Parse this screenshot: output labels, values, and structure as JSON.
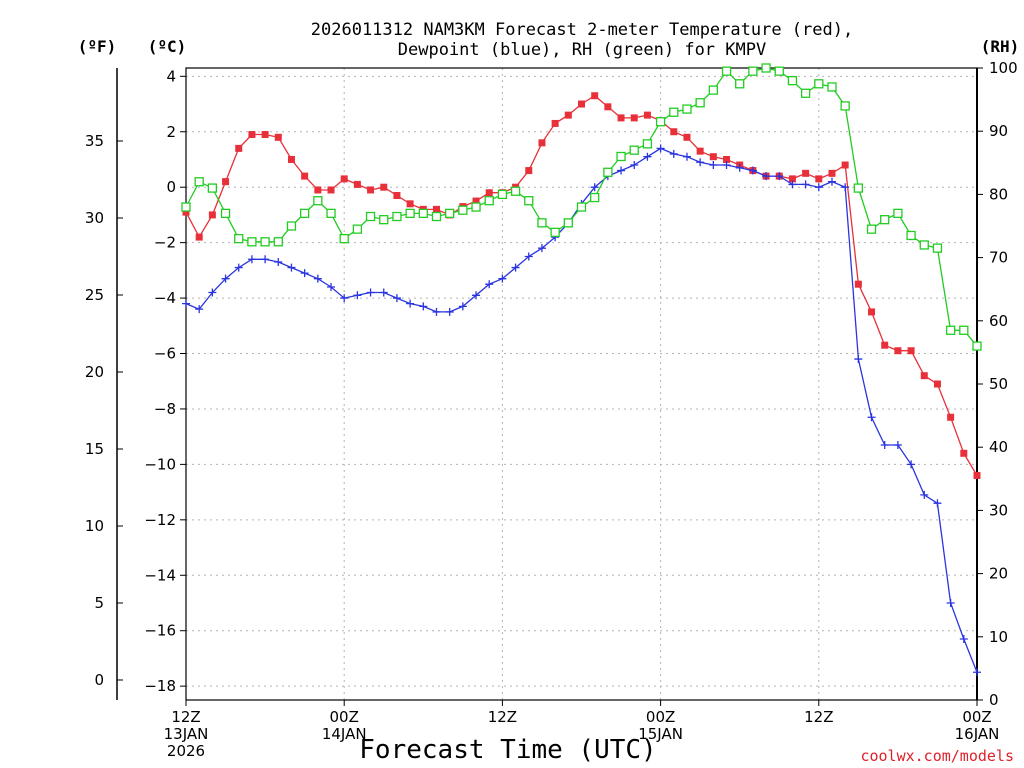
{
  "chart_data": {
    "type": "line",
    "title_lines": [
      "2026011312 NAM3KM Forecast 2-meter Temperature (red),",
      "Dewpoint (blue), RH (green) for KMPV"
    ],
    "xlabel": "Forecast Time (UTC)",
    "credit": "coolwx.com/models",
    "units": {
      "f": "(ºF)",
      "c": "(ºC)",
      "rh": "(RH)"
    },
    "x_range_hours": [
      0,
      60
    ],
    "c_axis": {
      "min": -18.5,
      "max": 4.3,
      "ticks": [
        4,
        2,
        0,
        -2,
        -4,
        -6,
        -8,
        -10,
        -12,
        -14,
        -16,
        -18
      ]
    },
    "f_axis": {
      "ticks": [
        35,
        30,
        25,
        20,
        15,
        10,
        5,
        0
      ]
    },
    "rh_axis": {
      "min": 0,
      "max": 100,
      "ticks": [
        100,
        90,
        80,
        70,
        60,
        50,
        40,
        30,
        20,
        10,
        0
      ]
    },
    "x_ticks": [
      {
        "hour": 0,
        "lines": [
          "12Z",
          "13JAN",
          "2026"
        ]
      },
      {
        "hour": 12,
        "lines": [
          "00Z",
          "14JAN"
        ]
      },
      {
        "hour": 24,
        "lines": [
          "12Z"
        ]
      },
      {
        "hour": 36,
        "lines": [
          "00Z",
          "15JAN"
        ]
      },
      {
        "hour": 48,
        "lines": [
          "12Z"
        ]
      },
      {
        "hour": 60,
        "lines": [
          "00Z",
          "16JAN"
        ]
      }
    ],
    "series": [
      {
        "name": "Temperature",
        "unit": "C",
        "color": "#e8303a",
        "marker": "filled-square",
        "hours": [
          0,
          1,
          2,
          3,
          4,
          5,
          6,
          7,
          8,
          9,
          10,
          11,
          12,
          13,
          14,
          15,
          16,
          17,
          18,
          19,
          20,
          21,
          22,
          23,
          24,
          25,
          26,
          27,
          28,
          29,
          30,
          31,
          32,
          33,
          34,
          35,
          36,
          37,
          38,
          39,
          40,
          41,
          42,
          43,
          44,
          45,
          46,
          47,
          48,
          49,
          50,
          51,
          52,
          53,
          54,
          55,
          56,
          57,
          58,
          59,
          60
        ],
        "values": [
          -0.9,
          -1.8,
          -1.0,
          0.2,
          1.4,
          1.9,
          1.9,
          1.8,
          1.0,
          0.4,
          -0.1,
          -0.1,
          0.3,
          0.1,
          -0.1,
          0.0,
          -0.3,
          -0.6,
          -0.8,
          -0.8,
          -1.0,
          -0.7,
          -0.5,
          -0.2,
          -0.2,
          0.0,
          0.6,
          1.6,
          2.3,
          2.6,
          3.0,
          3.3,
          2.9,
          2.5,
          2.5,
          2.6,
          2.4,
          2.0,
          1.8,
          1.3,
          1.1,
          1.0,
          0.8,
          0.6,
          0.4,
          0.4,
          0.3,
          0.5,
          0.3,
          0.5,
          0.8,
          -3.5,
          -4.5,
          -5.7,
          -5.9,
          -5.9,
          -6.8,
          -7.1,
          -8.3,
          -9.6,
          -10.4
        ]
      },
      {
        "name": "Dewpoint",
        "unit": "C",
        "color": "#2a35e0",
        "marker": "plus",
        "hours": [
          0,
          1,
          2,
          3,
          4,
          5,
          6,
          7,
          8,
          9,
          10,
          11,
          12,
          13,
          14,
          15,
          16,
          17,
          18,
          19,
          20,
          21,
          22,
          23,
          24,
          25,
          26,
          27,
          28,
          29,
          30,
          31,
          32,
          33,
          34,
          35,
          36,
          37,
          38,
          39,
          40,
          41,
          42,
          43,
          44,
          45,
          46,
          47,
          48,
          49,
          50,
          51,
          52,
          53,
          54,
          55,
          56,
          57,
          58,
          59,
          60
        ],
        "values": [
          -4.2,
          -4.4,
          -3.8,
          -3.3,
          -2.9,
          -2.6,
          -2.6,
          -2.7,
          -2.9,
          -3.1,
          -3.3,
          -3.6,
          -4.0,
          -3.9,
          -3.8,
          -3.8,
          -4.0,
          -4.2,
          -4.3,
          -4.5,
          -4.5,
          -4.3,
          -3.9,
          -3.5,
          -3.3,
          -2.9,
          -2.5,
          -2.2,
          -1.8,
          -1.3,
          -0.6,
          0.0,
          0.4,
          0.6,
          0.8,
          1.1,
          1.4,
          1.2,
          1.1,
          0.9,
          0.8,
          0.8,
          0.7,
          0.6,
          0.4,
          0.4,
          0.1,
          0.1,
          0.0,
          0.2,
          0.0,
          -6.2,
          -8.3,
          -9.3,
          -9.3,
          -10.0,
          -11.1,
          -11.4,
          -15.0,
          -16.3,
          -17.5
        ]
      },
      {
        "name": "RH",
        "unit": "%",
        "color": "#22cc22",
        "marker": "open-square",
        "hours": [
          0,
          1,
          2,
          3,
          4,
          5,
          6,
          7,
          8,
          9,
          10,
          11,
          12,
          13,
          14,
          15,
          16,
          17,
          18,
          19,
          20,
          21,
          22,
          23,
          24,
          25,
          26,
          27,
          28,
          29,
          30,
          31,
          32,
          33,
          34,
          35,
          36,
          37,
          38,
          39,
          40,
          41,
          42,
          43,
          44,
          45,
          46,
          47,
          48,
          49,
          50,
          51,
          52,
          53,
          54,
          55,
          56,
          57,
          58,
          59,
          60
        ],
        "values": [
          78,
          82,
          81,
          77,
          73,
          72.5,
          72.5,
          72.5,
          75,
          77,
          79,
          77,
          73,
          74.5,
          76.5,
          76,
          76.5,
          77,
          77,
          76.5,
          77,
          77.5,
          78,
          79,
          80,
          80.5,
          79,
          75.5,
          74,
          75.5,
          78,
          79.5,
          83.5,
          86,
          87,
          88,
          91.5,
          93,
          93.5,
          94.5,
          96.5,
          99.5,
          97.5,
          99.5,
          100,
          99.5,
          98,
          96,
          97.5,
          97,
          94,
          81,
          74.5,
          76,
          77,
          73.5,
          72,
          71.5,
          58.5,
          58.5,
          56
        ]
      }
    ]
  }
}
